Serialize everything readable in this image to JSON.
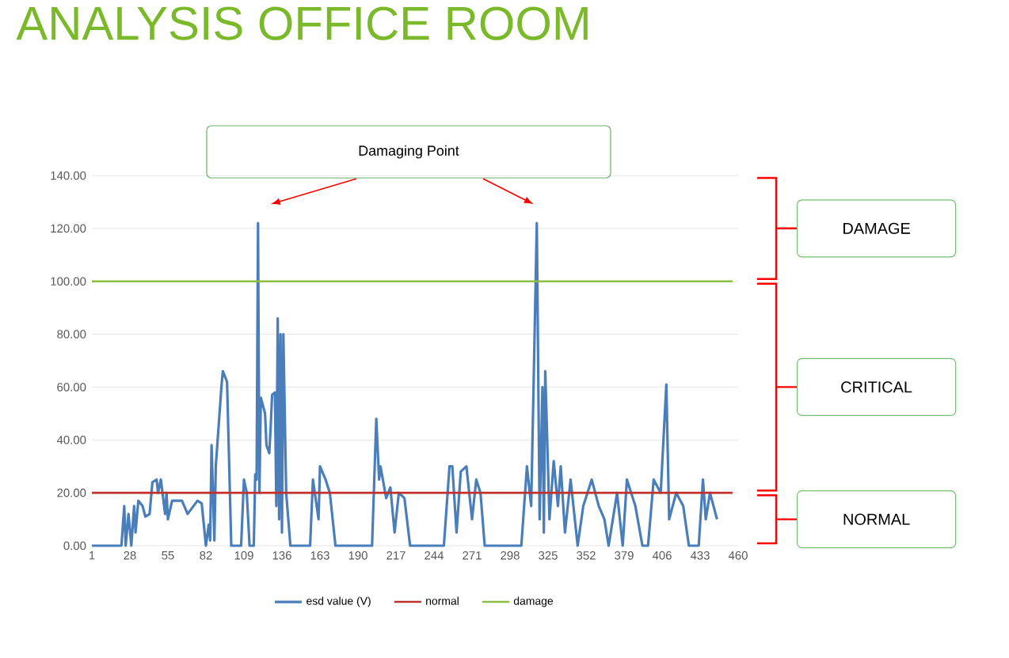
{
  "chart_data": {
    "type": "line",
    "title": "ANALYSIS OFFICE ROOM",
    "annotations": [
      "Damaging Point",
      "DAMAGE",
      "CRITICAL",
      "NORMAL"
    ],
    "series": [
      {
        "name": "esd value (V)",
        "color": "#4a7ebb",
        "x": [
          1,
          22,
          24,
          25,
          27,
          29,
          31,
          32,
          34,
          37,
          39,
          42,
          44,
          47,
          48,
          50,
          53,
          54,
          55,
          58,
          65,
          69,
          76,
          79,
          82,
          84,
          85,
          86,
          88,
          89,
          93,
          94,
          97,
          100,
          107,
          109,
          111,
          113,
          116,
          117,
          118,
          119,
          120,
          121,
          124,
          125,
          127,
          128,
          129,
          131,
          132,
          133,
          134,
          135,
          136,
          137,
          139,
          142,
          156,
          158,
          162,
          163,
          167,
          170,
          174,
          200,
          203,
          205,
          206,
          210,
          213,
          216,
          219,
          223,
          227,
          251,
          255,
          257,
          260,
          263,
          267,
          271,
          274,
          277,
          280,
          306,
          310,
          313,
          317,
          319,
          321,
          322,
          323,
          326,
          329,
          332,
          334,
          337,
          341,
          346,
          350,
          356,
          361,
          365,
          368,
          374,
          378,
          381,
          387,
          392,
          396,
          400,
          405,
          409,
          411,
          416,
          421,
          425,
          432,
          435,
          437,
          440,
          445
        ],
        "values": [
          0,
          0,
          15,
          0,
          12,
          0,
          15,
          5,
          17,
          15,
          11,
          12,
          24,
          25,
          20,
          25,
          12,
          20,
          10,
          17,
          17,
          12,
          17,
          16,
          0,
          8,
          2,
          38,
          2,
          30,
          60,
          66,
          62,
          0,
          0,
          25,
          20,
          0,
          0,
          27,
          25,
          122,
          20,
          56,
          50,
          38,
          35,
          45,
          57,
          58,
          15,
          86,
          10,
          80,
          5,
          80,
          20,
          0,
          0,
          25,
          10,
          30,
          25,
          20,
          0,
          0,
          48,
          25,
          30,
          18,
          22,
          5,
          20,
          18,
          0,
          0,
          30,
          30,
          5,
          28,
          30,
          10,
          25,
          20,
          0,
          0,
          30,
          15,
          122,
          10,
          60,
          5,
          66,
          10,
          32,
          15,
          30,
          5,
          25,
          0,
          15,
          25,
          15,
          10,
          0,
          20,
          0,
          25,
          15,
          0,
          0,
          25,
          20,
          61,
          10,
          20,
          15,
          0,
          0,
          25,
          10,
          20,
          10
        ]
      },
      {
        "name": "normal",
        "color": "#c0312b",
        "x": [
          1,
          456
        ],
        "values": [
          20,
          20
        ]
      },
      {
        "name": "damage",
        "color": "#8cbf3f",
        "x": [
          1,
          456
        ],
        "values": [
          100,
          100
        ]
      }
    ],
    "xlim": [
      1,
      460
    ],
    "xticks": [
      1,
      28,
      55,
      82,
      109,
      136,
      163,
      190,
      217,
      244,
      271,
      298,
      325,
      352,
      379,
      406,
      433,
      460
    ],
    "ylim": [
      0,
      140
    ],
    "yticks": [
      {
        "value": 0,
        "label": "0.00"
      },
      {
        "value": 20,
        "label": "20.00"
      },
      {
        "value": 40,
        "label": "40.00"
      },
      {
        "value": 60,
        "label": "60.00"
      },
      {
        "value": 80,
        "label": "80.00"
      },
      {
        "value": 100,
        "label": "100.00"
      },
      {
        "value": 120,
        "label": "120.00"
      },
      {
        "value": 140,
        "label": "140.00"
      }
    ],
    "grid": "y",
    "legend": "bottom",
    "marker": "none",
    "line_style": "solid"
  }
}
